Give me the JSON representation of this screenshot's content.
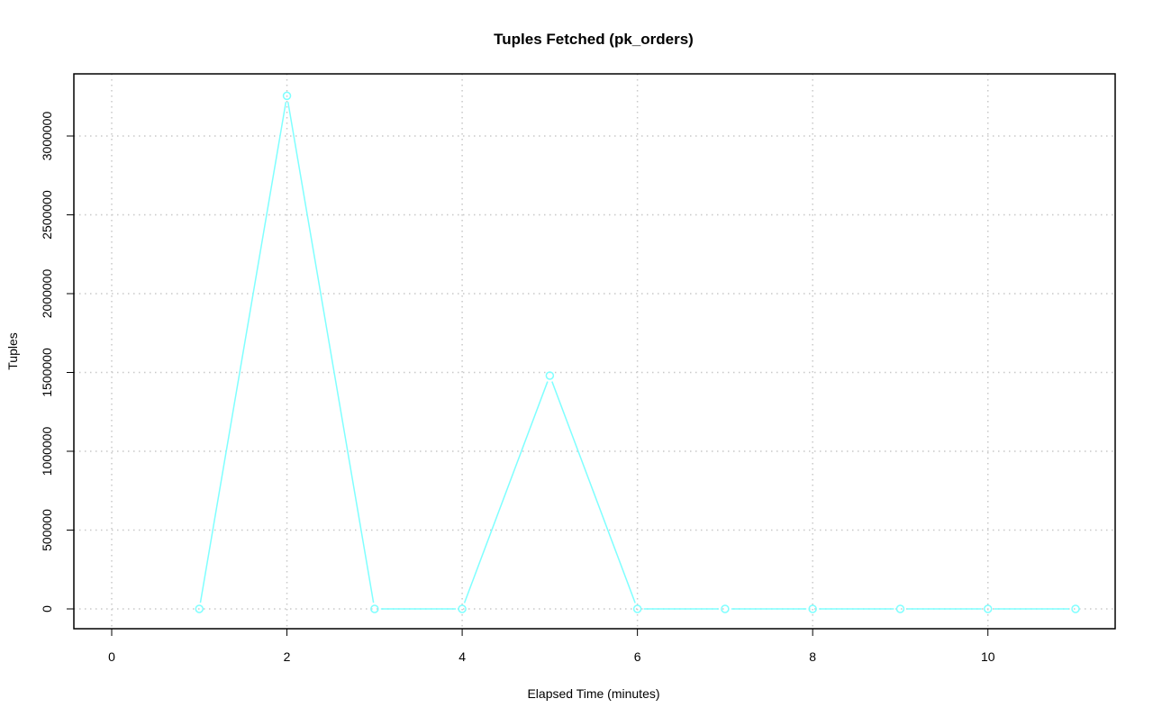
{
  "chart_data": {
    "type": "line",
    "title": "Tuples Fetched (pk_orders)",
    "xlabel": "Elapsed Time (minutes)",
    "ylabel": "Tuples",
    "xlim": [
      0,
      11
    ],
    "ylim": [
      0,
      3250000
    ],
    "xticks": [
      0,
      2,
      4,
      6,
      8,
      10
    ],
    "yticks": [
      0,
      500000,
      1000000,
      1500000,
      2000000,
      2500000,
      3000000
    ],
    "xtick_labels": [
      "0",
      "2",
      "4",
      "6",
      "8",
      "10"
    ],
    "ytick_labels": [
      "0",
      "500000",
      "1000000",
      "1500000",
      "2000000",
      "2500000",
      "3000000"
    ],
    "grid": true,
    "series_color": "#7fffff",
    "x": [
      1,
      2,
      3,
      4,
      5,
      6,
      7,
      8,
      9,
      10,
      11
    ],
    "values": [
      0,
      3255000,
      0,
      0,
      1480000,
      0,
      0,
      0,
      0,
      0,
      0
    ]
  }
}
